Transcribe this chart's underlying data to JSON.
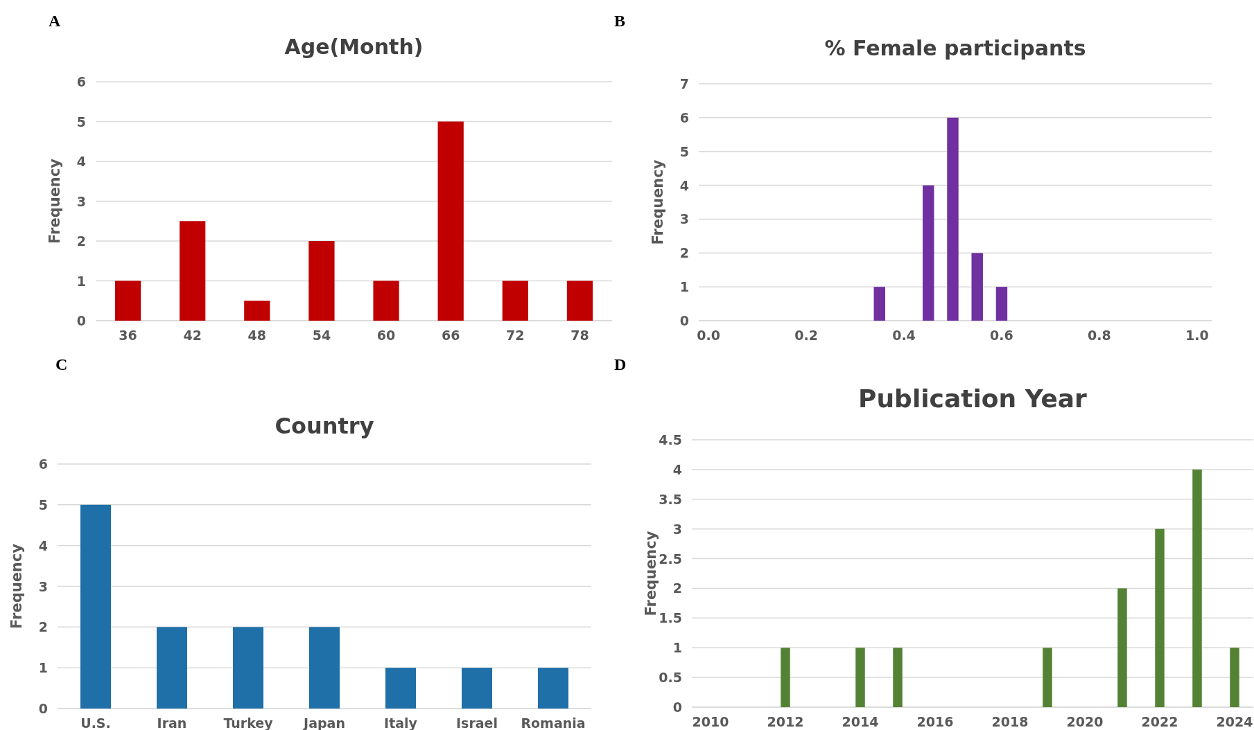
{
  "chart_data": [
    {
      "type": "bar",
      "title": "Age(Month)",
      "ylabel": "Frequency",
      "annotations": [
        "A"
      ],
      "categories": [
        "36",
        "42",
        "48",
        "54",
        "60",
        "66",
        "72",
        "78"
      ],
      "values": [
        1,
        2.5,
        0.5,
        2,
        1,
        5,
        1,
        1
      ],
      "color": "#c00000",
      "ylim": [
        0,
        6
      ],
      "yticks": [
        0,
        1,
        2,
        3,
        4,
        5,
        6
      ],
      "grid": "y"
    },
    {
      "type": "bar",
      "title": "% Female participants",
      "ylabel": "Frequency",
      "annotations": [
        "B"
      ],
      "x": [
        0.35,
        0.45,
        0.5,
        0.55,
        0.6
      ],
      "values": [
        1,
        4,
        6,
        2,
        1
      ],
      "color": "#7030a0",
      "xlim": [
        -0.02,
        1.03
      ],
      "xticks": [
        {
          "value": 0,
          "label": "0.0"
        },
        0.2,
        0.4,
        0.6,
        0.8,
        {
          "value": 1,
          "label": "1.0"
        }
      ],
      "ylim": [
        0,
        7
      ],
      "yticks": [
        0,
        1,
        2,
        3,
        4,
        5,
        6,
        7
      ],
      "grid": "y"
    },
    {
      "type": "bar",
      "title": "Country",
      "ylabel": "Frequency",
      "annotations": [
        "C"
      ],
      "categories": [
        "U.S.",
        "Iran",
        "Turkey",
        "Japan",
        "Italy",
        "Israel",
        "Romania"
      ],
      "values": [
        5,
        2,
        2,
        2,
        1,
        1,
        1
      ],
      "color": "#1f6fa8",
      "ylim": [
        0,
        6
      ],
      "yticks": [
        0,
        1,
        2,
        3,
        4,
        5,
        6
      ],
      "grid": "y"
    },
    {
      "type": "bar",
      "title": "Publication Year",
      "ylabel": "Frequency",
      "annotations": [
        "D"
      ],
      "x": [
        2012,
        2014,
        2015,
        2019,
        2021,
        2022,
        2023,
        2024
      ],
      "values": [
        1,
        1,
        1,
        1,
        2,
        3,
        4,
        1
      ],
      "color": "#548235",
      "xlim": [
        2009.5,
        2024.5
      ],
      "xticks": [
        2010,
        2012,
        2014,
        2016,
        2018,
        2020,
        2022,
        2024
      ],
      "ylim": [
        0,
        4.5
      ],
      "yticks": [
        0,
        0.5,
        1,
        1.5,
        2,
        2.5,
        3,
        3.5,
        4,
        4.5
      ],
      "grid": "y"
    }
  ]
}
